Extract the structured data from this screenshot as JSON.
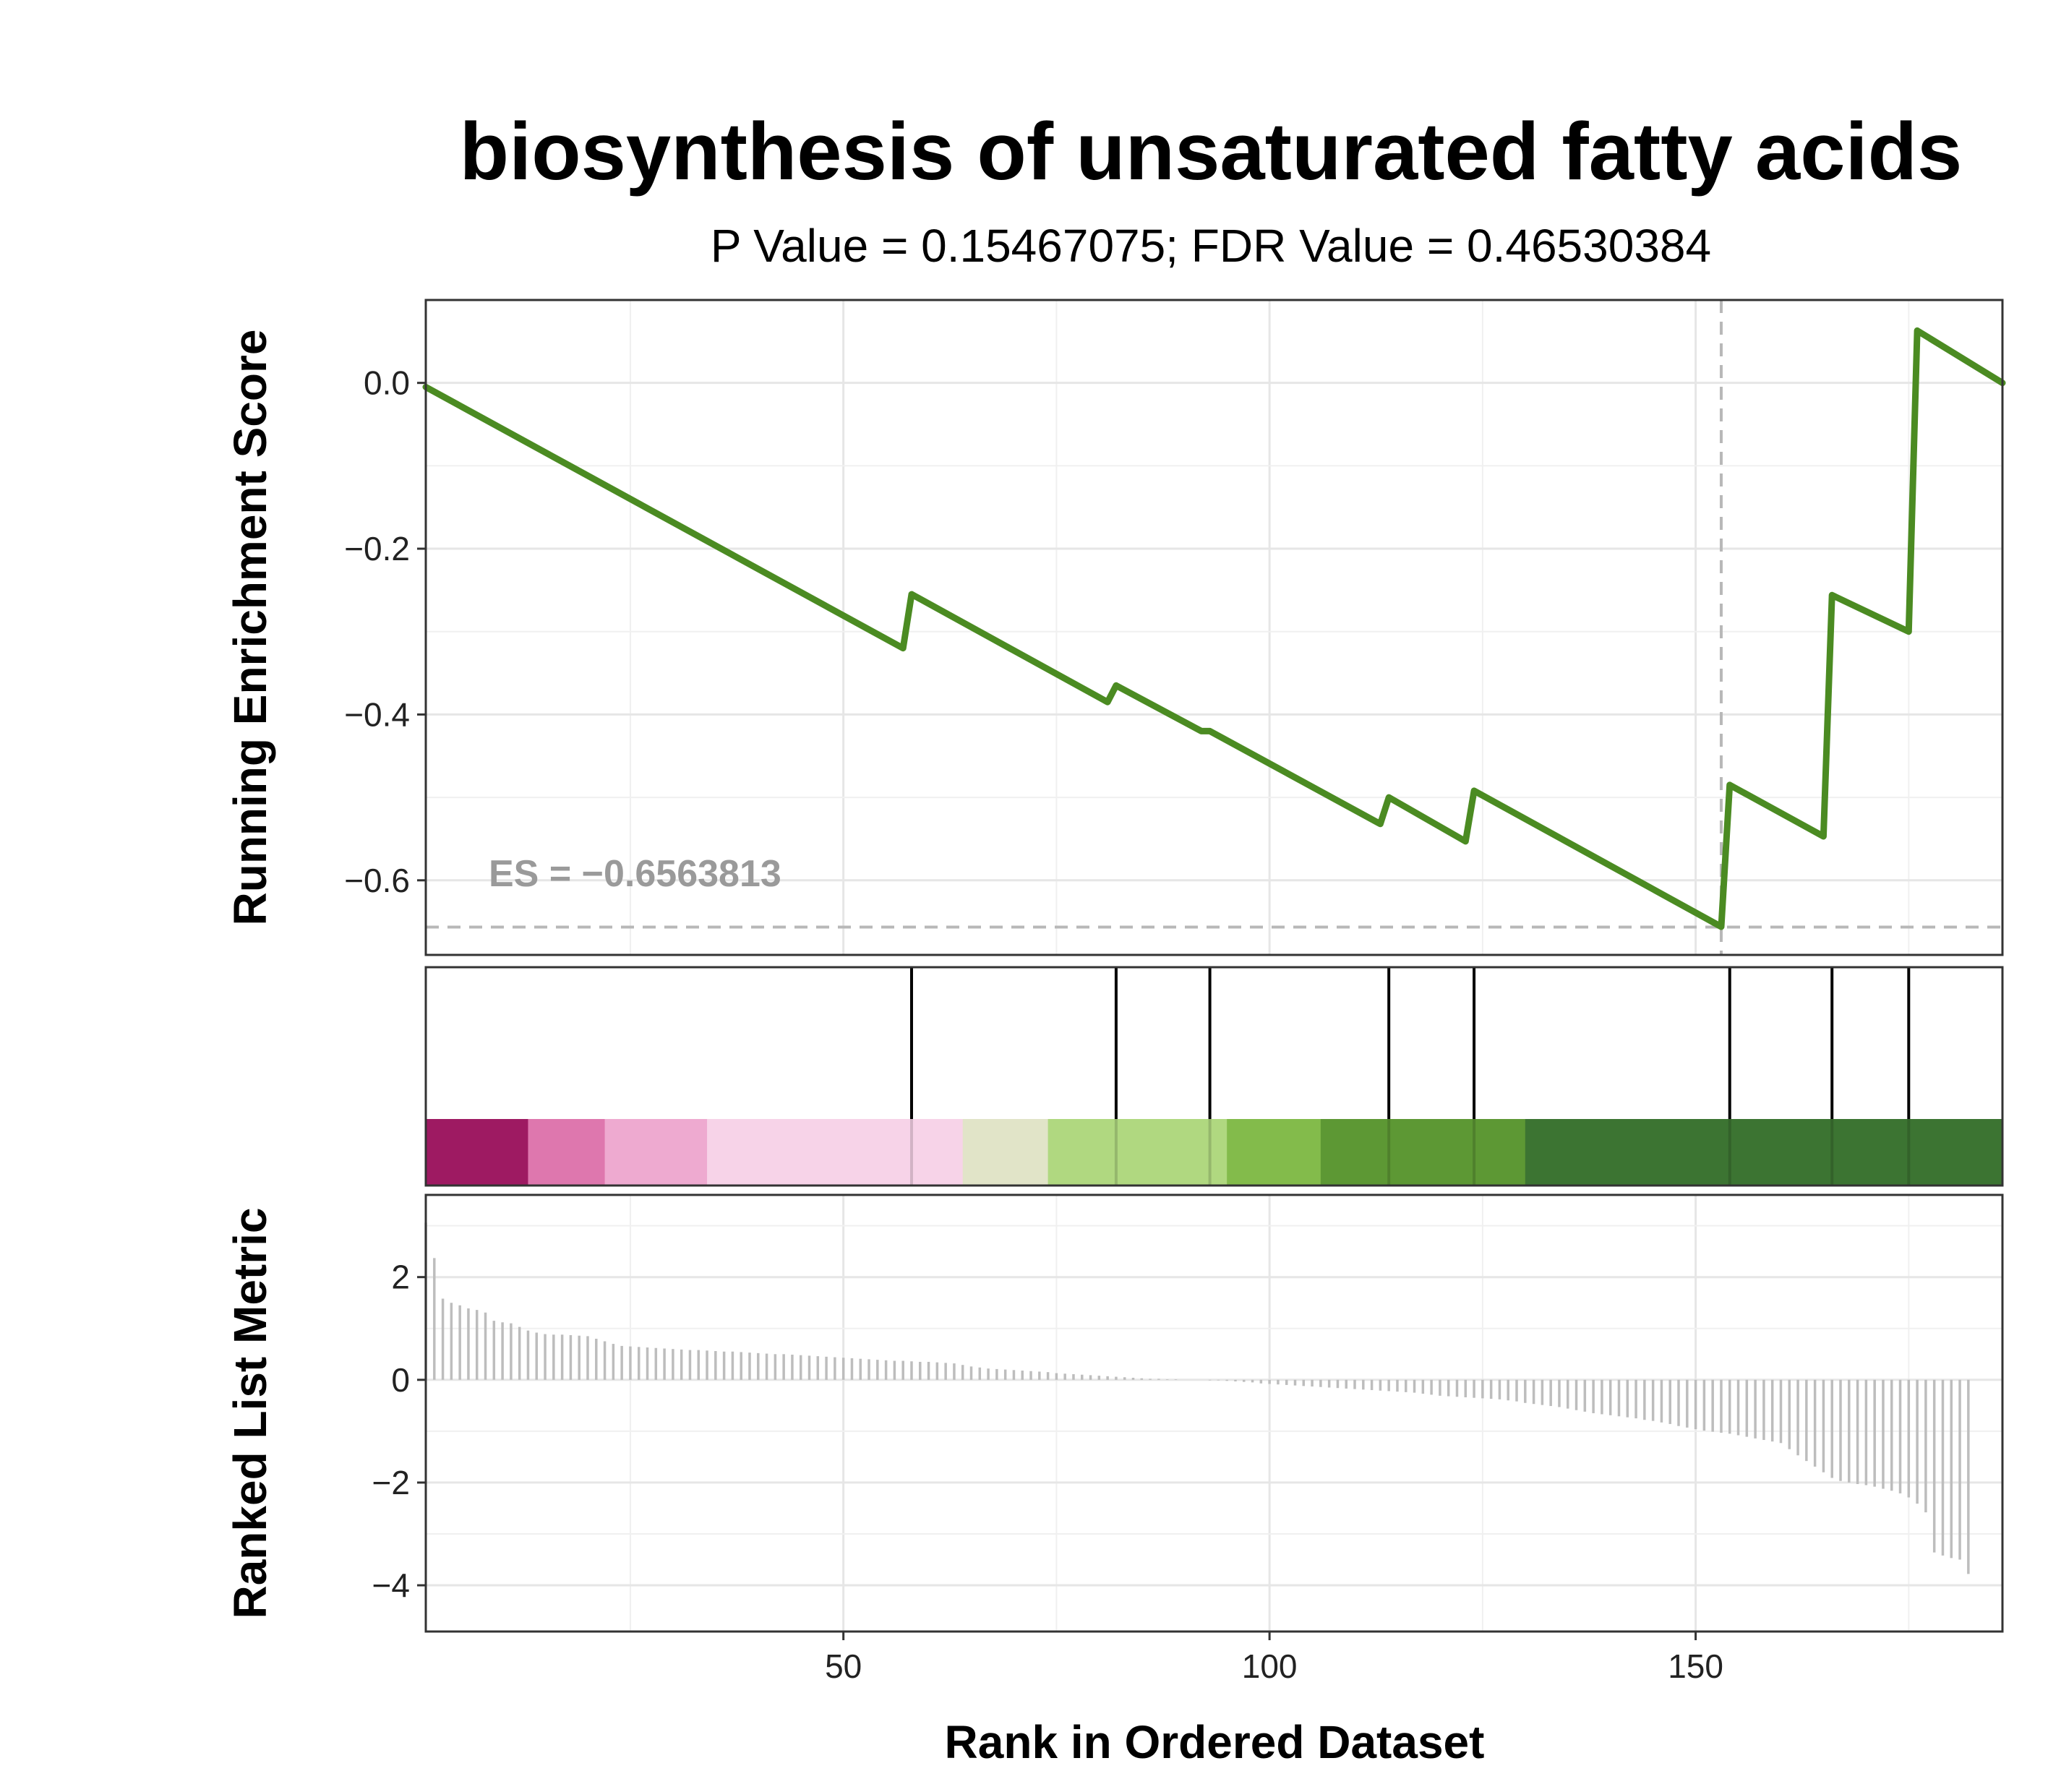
{
  "chart_data": {
    "type": "line",
    "title": "biosynthesis of unsaturated fatty acids",
    "subtitle": "P Value = 0.15467075; FDR Value = 0.46530384",
    "xlabel": "Rank in Ordered Dataset",
    "xlim": [
      1,
      186
    ],
    "x_ticks": [
      50,
      100,
      150
    ],
    "grid": true,
    "colors": {
      "es_line": "#4b8b22",
      "guide": "#b8b8b8",
      "metric_bar": "#bdbdbd",
      "hit_line": "#000000"
    },
    "running_es": {
      "ylabel": "Running Enrichment Score",
      "ylim": [
        -0.69,
        0.1
      ],
      "y_ticks": [
        0.0,
        -0.2,
        -0.4,
        -0.6
      ],
      "y_tick_labels": [
        "0.0",
        "−0.2",
        "−0.4",
        "−0.6"
      ],
      "points": [
        [
          1,
          -0.005
        ],
        [
          57,
          -0.32
        ],
        [
          58,
          -0.255
        ],
        [
          81,
          -0.385
        ],
        [
          82,
          -0.365
        ],
        [
          92,
          -0.42
        ],
        [
          93,
          -0.42
        ],
        [
          113,
          -0.532
        ],
        [
          114,
          -0.5
        ],
        [
          123,
          -0.553
        ],
        [
          124,
          -0.492
        ],
        [
          153,
          -0.656
        ],
        [
          154,
          -0.485
        ],
        [
          165,
          -0.547
        ],
        [
          166,
          -0.256
        ],
        [
          175,
          -0.3
        ],
        [
          176,
          0.063
        ],
        [
          186,
          0.0
        ]
      ],
      "es_value": -0.6563813,
      "es_label": "ES = −0.6563813",
      "peak_rank": 153
    },
    "gene_hits": [
      58,
      82,
      93,
      114,
      124,
      154,
      166,
      175
    ],
    "color_bands": [
      {
        "from": 1,
        "to": 13,
        "color": "#9e1a62"
      },
      {
        "from": 13,
        "to": 22,
        "color": "#de77ae"
      },
      {
        "from": 22,
        "to": 34,
        "color": "#eeaad0"
      },
      {
        "from": 34,
        "to": 64,
        "color": "#f7d3e8"
      },
      {
        "from": 64,
        "to": 74,
        "color": "#e1e4c8"
      },
      {
        "from": 74,
        "to": 95,
        "color": "#b0d880"
      },
      {
        "from": 95,
        "to": 106,
        "color": "#83bb4b"
      },
      {
        "from": 106,
        "to": 130,
        "color": "#5d9834"
      },
      {
        "from": 130,
        "to": 186,
        "color": "#3c7432"
      }
    ],
    "ranked_metric": {
      "ylabel": "Ranked List Metric",
      "ylim": [
        -4.9,
        3.6
      ],
      "y_ticks": [
        2,
        0,
        -2,
        -4
      ],
      "y_tick_labels": [
        "2",
        "0",
        "−2",
        "−4"
      ],
      "values": [
        3.06,
        2.37,
        1.58,
        1.5,
        1.45,
        1.39,
        1.36,
        1.31,
        1.15,
        1.12,
        1.1,
        1.03,
        0.96,
        0.92,
        0.89,
        0.88,
        0.88,
        0.87,
        0.86,
        0.85,
        0.8,
        0.75,
        0.7,
        0.66,
        0.65,
        0.64,
        0.63,
        0.62,
        0.61,
        0.6,
        0.59,
        0.58,
        0.58,
        0.57,
        0.56,
        0.55,
        0.55,
        0.54,
        0.53,
        0.52,
        0.51,
        0.5,
        0.5,
        0.49,
        0.48,
        0.47,
        0.46,
        0.45,
        0.44,
        0.43,
        0.42,
        0.41,
        0.4,
        0.39,
        0.38,
        0.37,
        0.37,
        0.36,
        0.35,
        0.35,
        0.34,
        0.33,
        0.32,
        0.29,
        0.26,
        0.24,
        0.22,
        0.21,
        0.2,
        0.19,
        0.18,
        0.17,
        0.16,
        0.15,
        0.13,
        0.12,
        0.11,
        0.1,
        0.09,
        0.08,
        0.07,
        0.06,
        0.05,
        0.04,
        0.03,
        0.02,
        0.02,
        0.01,
        0.01,
        0.0,
        0.0,
        0.0,
        -0.01,
        -0.01,
        -0.02,
        -0.03,
        -0.04,
        -0.05,
        -0.07,
        -0.08,
        -0.09,
        -0.1,
        -0.11,
        -0.12,
        -0.13,
        -0.14,
        -0.15,
        -0.16,
        -0.17,
        -0.18,
        -0.19,
        -0.2,
        -0.21,
        -0.22,
        -0.23,
        -0.24,
        -0.25,
        -0.27,
        -0.29,
        -0.31,
        -0.32,
        -0.33,
        -0.34,
        -0.35,
        -0.36,
        -0.37,
        -0.38,
        -0.4,
        -0.42,
        -0.45,
        -0.47,
        -0.49,
        -0.51,
        -0.53,
        -0.56,
        -0.59,
        -0.62,
        -0.65,
        -0.67,
        -0.69,
        -0.71,
        -0.73,
        -0.75,
        -0.78,
        -0.8,
        -0.83,
        -0.86,
        -0.9,
        -0.93,
        -0.96,
        -0.99,
        -1.01,
        -1.03,
        -1.05,
        -1.08,
        -1.11,
        -1.14,
        -1.17,
        -1.2,
        -1.23,
        -1.35,
        -1.47,
        -1.58,
        -1.69,
        -1.8,
        -1.91,
        -1.97,
        -2.0,
        -2.03,
        -2.05,
        -2.08,
        -2.12,
        -2.16,
        -2.21,
        -2.29,
        -2.41,
        -2.58,
        -3.36,
        -3.42,
        -3.47,
        -3.5,
        -3.78
      ]
    }
  }
}
